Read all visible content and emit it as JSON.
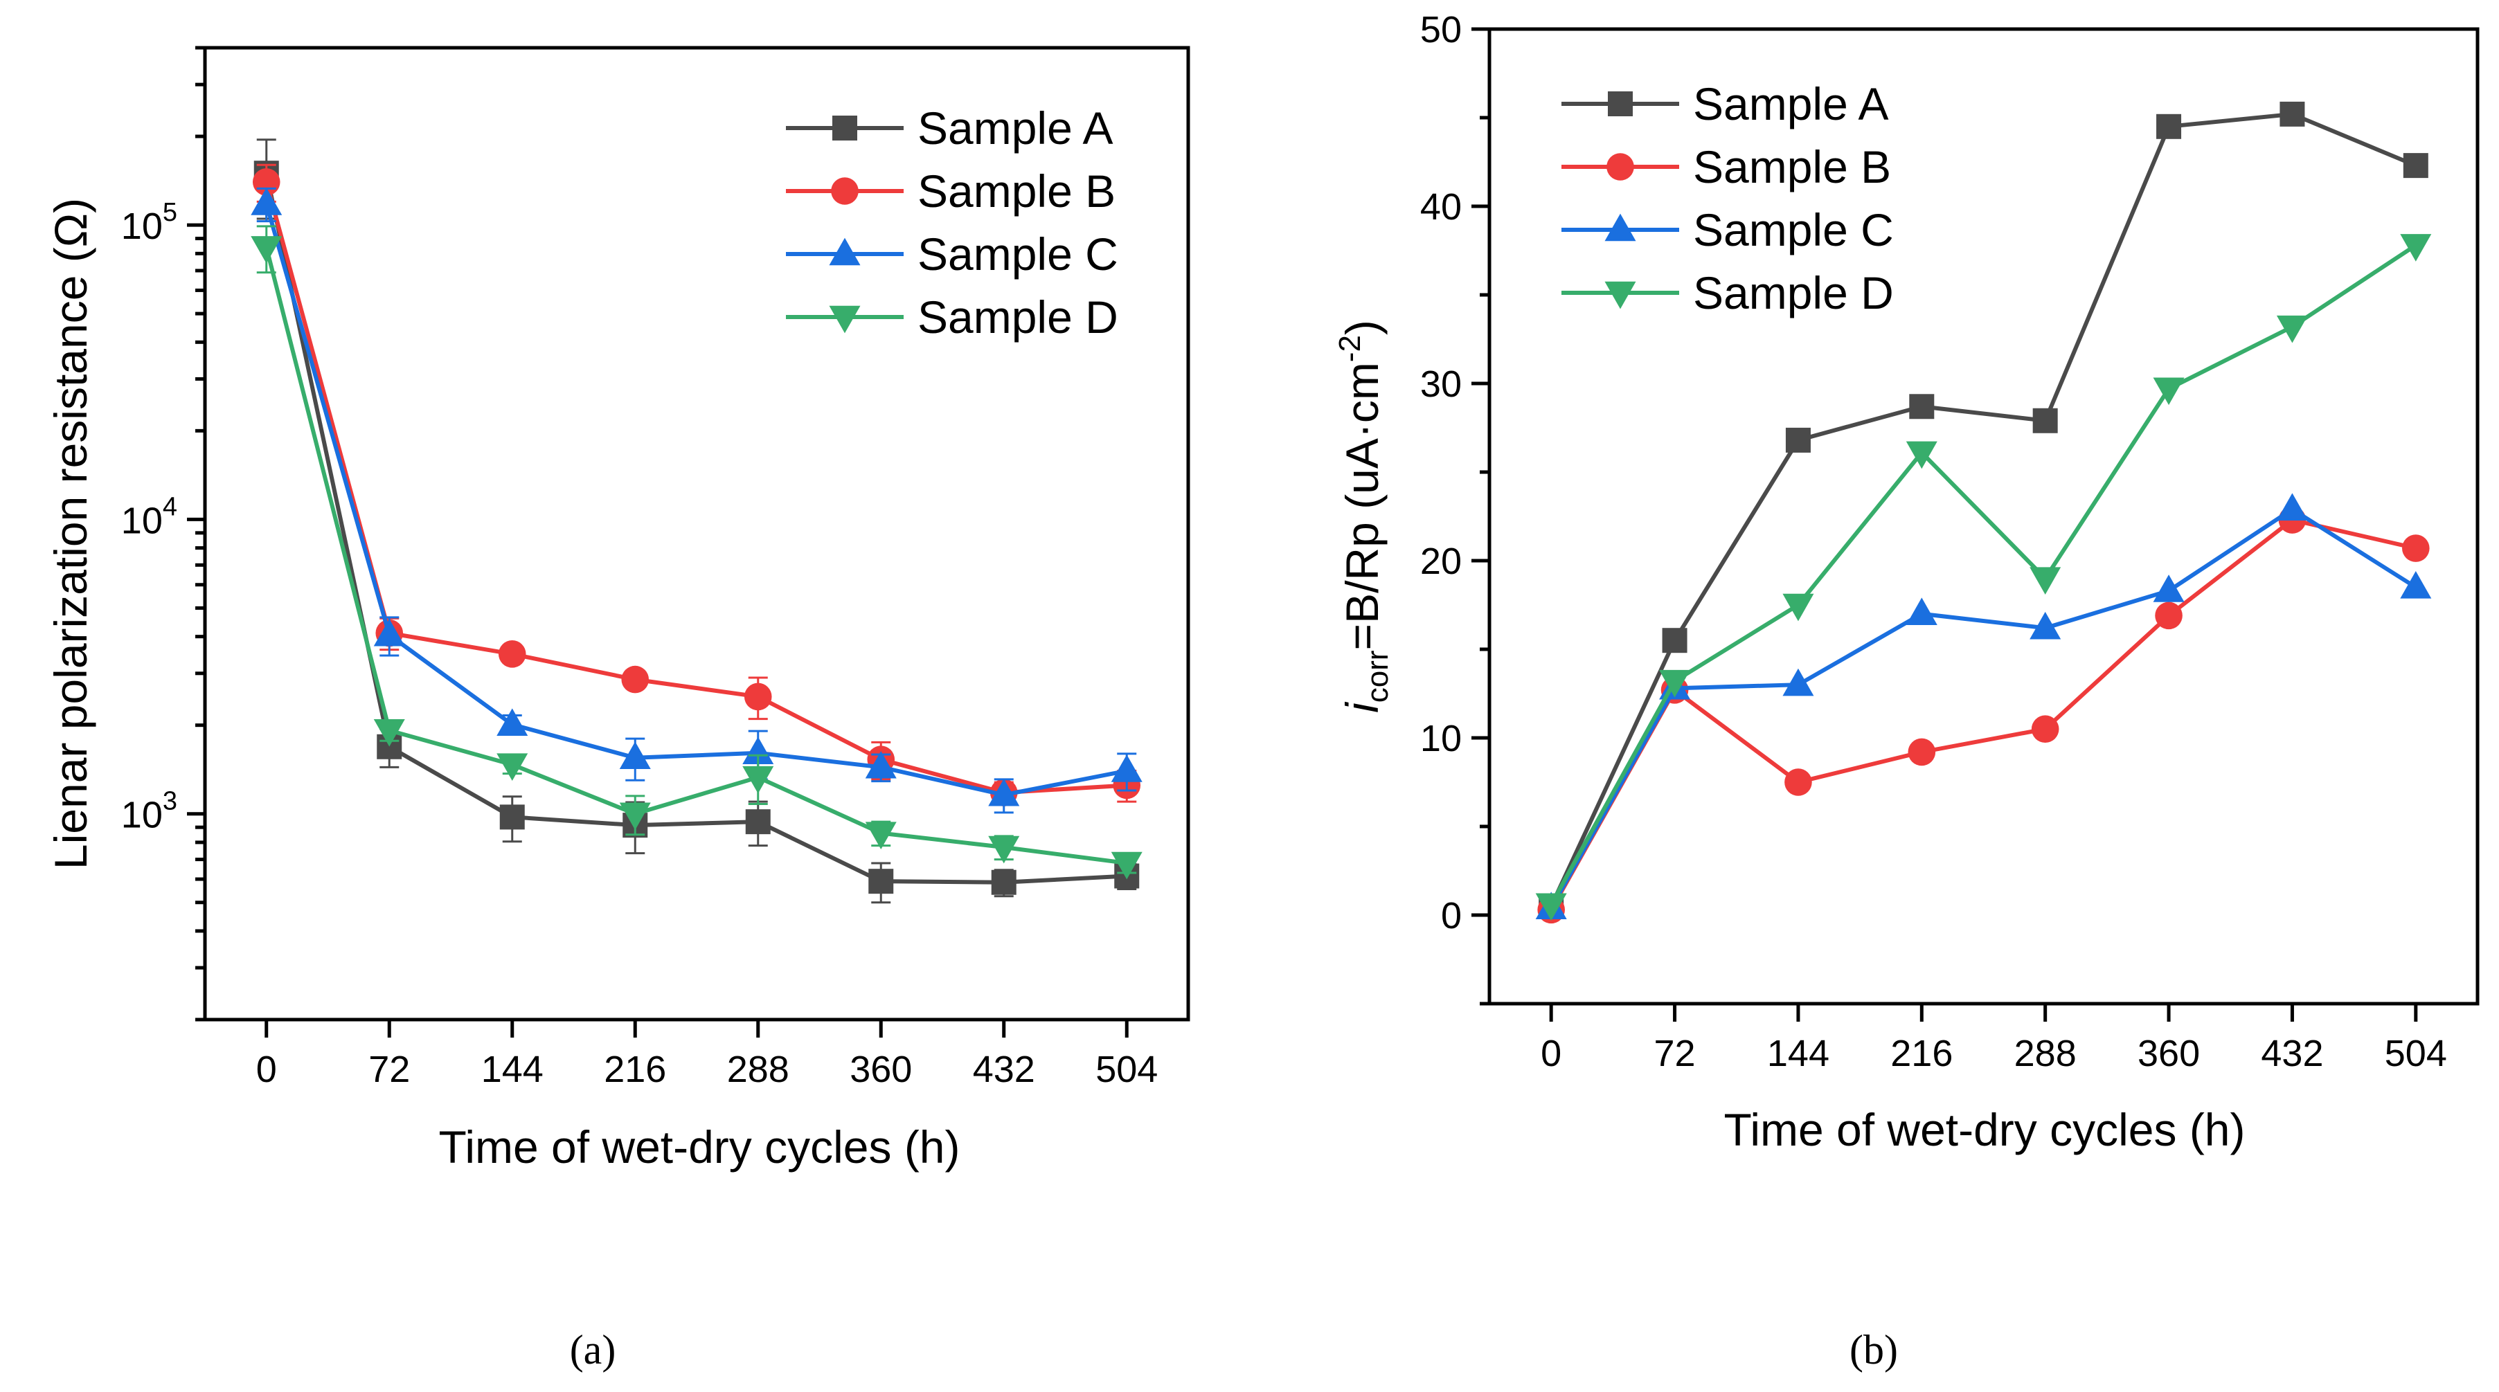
{
  "chart_data": [
    {
      "type": "line",
      "panel_label": "(a)",
      "xlabel": "Time of wet-dry cycles (h)",
      "ylabel": "Lienar polarization resistance  (Ω)",
      "yscale": "log",
      "ylim": [
        200,
        400000
      ],
      "xlim": [
        -36,
        540
      ],
      "x": [
        0,
        72,
        144,
        216,
        288,
        360,
        432,
        504
      ],
      "x_tick_labels": [
        "0",
        "72",
        "144",
        "216",
        "288",
        "360",
        "432",
        "504"
      ],
      "y_ticks": [
        {
          "value": 1000,
          "base": "10",
          "exp": "3"
        },
        {
          "value": 10000,
          "base": "10",
          "exp": "4"
        },
        {
          "value": 100000,
          "base": "10",
          "exp": "5"
        }
      ],
      "legend_position": "top-right",
      "series": [
        {
          "name": "Sample A",
          "color": "#4a4a4a",
          "marker": "square",
          "values": [
            150000,
            1690,
            975,
            915,
            940,
            590,
            585,
            615
          ],
          "errors": [
            45000,
            250,
            170,
            180,
            160,
            90,
            60,
            60
          ]
        },
        {
          "name": "Sample B",
          "color": "#ee3b3b",
          "marker": "circle",
          "values": [
            140000,
            4110,
            3490,
            2860,
            2500,
            1530,
            1180,
            1250
          ],
          "errors": [
            20000,
            500,
            150,
            150,
            400,
            220,
            100,
            150
          ]
        },
        {
          "name": "Sample C",
          "color": "#1a6fdf",
          "marker": "triangle-up",
          "values": [
            118000,
            4050,
            2010,
            1550,
            1610,
            1440,
            1160,
            1400
          ],
          "errors": [
            15000,
            600,
            150,
            250,
            300,
            150,
            150,
            200
          ]
        },
        {
          "name": "Sample D",
          "color": "#37ad6b",
          "marker": "triangle-down",
          "values": [
            84000,
            1920,
            1470,
            1000,
            1330,
            860,
            770,
            680
          ],
          "errors": [
            15000,
            150,
            100,
            150,
            250,
            80,
            70,
            50
          ]
        }
      ]
    },
    {
      "type": "line",
      "panel_label": "(b)",
      "xlabel": "Time of wet-dry cycles (h)",
      "ylabel_parts": {
        "i": "i",
        "sub": "corr",
        "mid": "=B/Rp (uA·cm",
        "sup": "-2",
        "end": ")"
      },
      "ylim": [
        -5,
        50
      ],
      "xlim": [
        -36,
        540
      ],
      "x": [
        0,
        72,
        144,
        216,
        288,
        360,
        432,
        504
      ],
      "x_tick_labels": [
        "0",
        "72",
        "144",
        "216",
        "288",
        "360",
        "432",
        "504"
      ],
      "y_tick_labels": [
        "0",
        "10",
        "20",
        "30",
        "40",
        "50"
      ],
      "legend_position": "top-left",
      "series": [
        {
          "name": "Sample A",
          "color": "#4a4a4a",
          "marker": "square",
          "values": [
            0.5,
            15.5,
            26.8,
            28.7,
            27.9,
            44.5,
            45.2,
            42.3
          ]
        },
        {
          "name": "Sample B",
          "color": "#ee3b3b",
          "marker": "circle",
          "values": [
            0.3,
            12.7,
            7.5,
            9.2,
            10.5,
            16.9,
            22.3,
            20.7
          ]
        },
        {
          "name": "Sample C",
          "color": "#1a6fdf",
          "marker": "triangle-up",
          "values": [
            0.4,
            12.8,
            13.0,
            17.0,
            16.2,
            18.3,
            22.9,
            18.5
          ]
        },
        {
          "name": "Sample D",
          "color": "#37ad6b",
          "marker": "triangle-down",
          "values": [
            0.6,
            13.2,
            17.5,
            26.1,
            19.0,
            29.7,
            33.2,
            37.8
          ]
        }
      ]
    }
  ]
}
